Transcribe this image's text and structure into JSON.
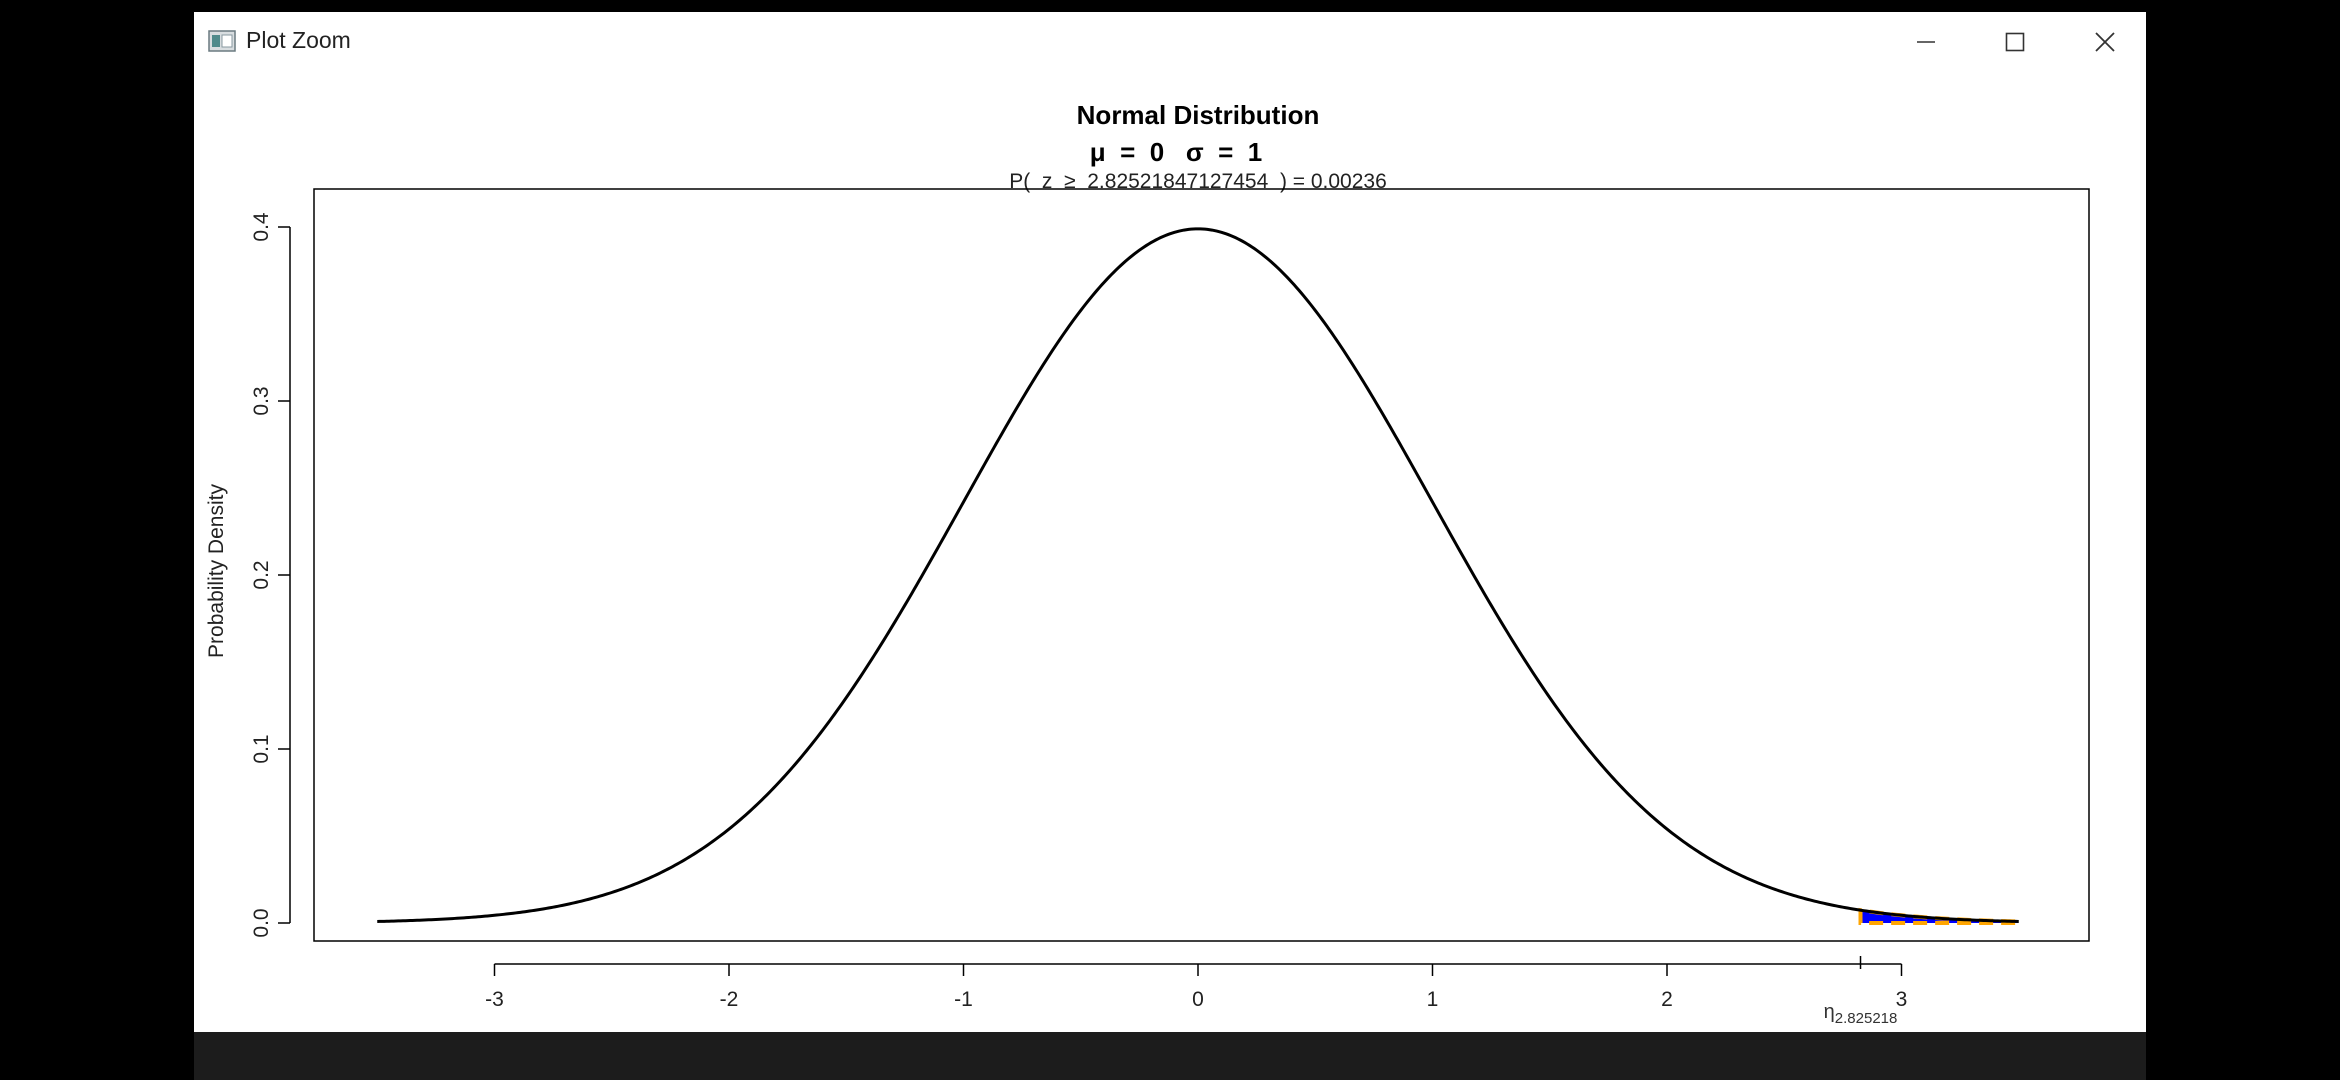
{
  "window": {
    "title": "Plot Zoom",
    "controls": {
      "minimize": "minimize",
      "maximize": "maximize",
      "close": "close"
    }
  },
  "chart_data": {
    "type": "line",
    "title": "Normal Distribution",
    "subtitle": "μ  =  0   σ  =  1",
    "annotation": "P(  z  ≥  2.82521847127454  ) = 0.00236",
    "xlabel": "",
    "ylabel": "Probability Density",
    "xlim": [
      -3.5,
      3.5
    ],
    "ylim": [
      0,
      0.4
    ],
    "x_ticks": [
      "-3",
      "-2",
      "-1",
      "0",
      "1",
      "2",
      "3"
    ],
    "y_ticks": [
      "0.0",
      "0.1",
      "0.2",
      "0.3",
      "0.4"
    ],
    "grid": false,
    "series": [
      {
        "type": "line",
        "color": "#000000",
        "x": [
          -3.5,
          -3.25,
          -3.0,
          -2.75,
          -2.5,
          -2.25,
          -2.0,
          -1.75,
          -1.5,
          -1.25,
          -1.0,
          -0.75,
          -0.5,
          -0.25,
          0.0,
          0.25,
          0.5,
          0.75,
          1.0,
          1.25,
          1.5,
          1.75,
          2.0,
          2.25,
          2.5,
          2.75,
          3.0,
          3.25,
          3.5
        ],
        "y": [
          0.0009,
          0.002,
          0.0044,
          0.0091,
          0.0175,
          0.0317,
          0.054,
          0.0863,
          0.1295,
          0.1826,
          0.242,
          0.3011,
          0.3521,
          0.3867,
          0.3989,
          0.3867,
          0.3521,
          0.3011,
          0.242,
          0.1826,
          0.1295,
          0.0863,
          0.054,
          0.0317,
          0.0175,
          0.0091,
          0.0044,
          0.002,
          0.0009
        ]
      }
    ],
    "shaded_region": {
      "from": 2.825218,
      "to": 3.5,
      "fill_color": "#0000ff",
      "border_color": "#ffa500",
      "label": "P(z ≥ 2.825218) = 0.00236"
    },
    "marker": {
      "x": 2.825218,
      "label": "η",
      "label_sub": "2.825218"
    }
  }
}
